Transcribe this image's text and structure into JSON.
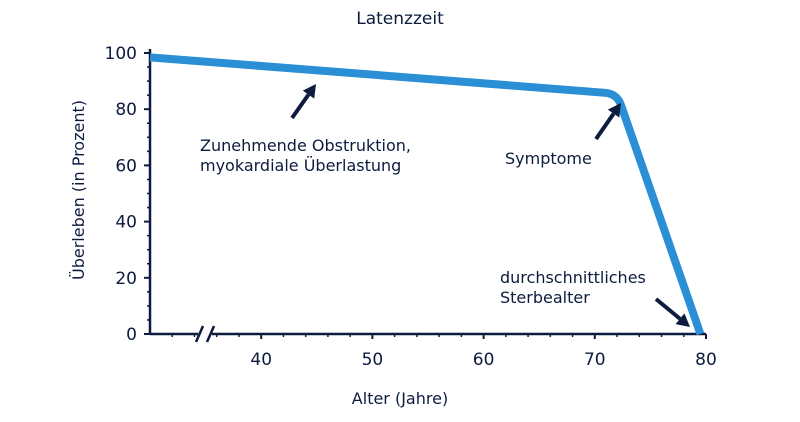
{
  "chart_data": {
    "type": "line",
    "title": "Latenzzeit",
    "xlabel": "Alter (Jahre)",
    "ylabel": "Überleben (in Prozent)",
    "xlim": [
      30,
      80
    ],
    "ylim": [
      0,
      100
    ],
    "x_axis_break": true,
    "x_ticks": [
      40,
      50,
      60,
      70,
      80
    ],
    "y_ticks": [
      0,
      20,
      40,
      60,
      80,
      100
    ],
    "x_tick_labels": [
      "40",
      "50",
      "60",
      "70",
      "80"
    ],
    "y_tick_labels": [
      "0",
      "20",
      "40",
      "60",
      "80",
      "100"
    ],
    "series": [
      {
        "x": [
          25,
          72,
          79.5
        ],
        "y": [
          100,
          85.5,
          0
        ]
      }
    ],
    "line_color": "#2b8fd6",
    "annotations": [
      {
        "lines": [
          "Zunehmende Obstruktion,",
          "myokardiale Überlastung"
        ],
        "target": [
          42,
          90
        ]
      },
      {
        "lines": [
          "Symptome"
        ],
        "target": [
          72,
          84
        ]
      },
      {
        "lines": [
          "durchschnittliches",
          "Sterbealter"
        ],
        "target": [
          79,
          1
        ]
      }
    ],
    "grid": false
  }
}
